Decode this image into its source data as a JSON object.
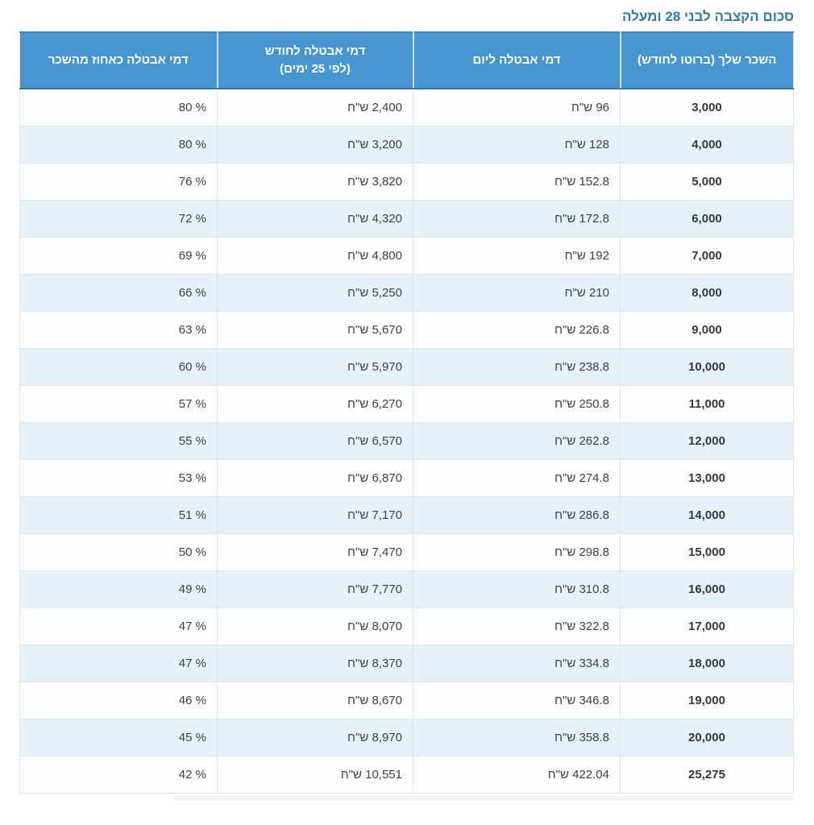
{
  "page": {
    "title": "סכום הקצבה לבני 28 ומעלה"
  },
  "colors": {
    "title": "#2a7aa1",
    "header_bg": "#4795d1",
    "header_text": "#ffffff",
    "row_alt": "#e5f2fa",
    "row_base": "#fcfdff"
  },
  "table": {
    "columns": [
      {
        "key": "salary",
        "label": "השכר שלך (ברוטו לחודש)"
      },
      {
        "key": "daily",
        "label": "דמי אבטלה ליום"
      },
      {
        "key": "monthly",
        "label": "דמי אבטלה לחודש",
        "label2": "(לפי 25 ימים)"
      },
      {
        "key": "percent",
        "label": "דמי אבטלה כאחוז מהשכר"
      }
    ],
    "rows": [
      {
        "salary": "3,000",
        "daily": "96 ש\"ח",
        "monthly": "2,400 ש\"ח",
        "percent": "80 %"
      },
      {
        "salary": "4,000",
        "daily": "128 ש\"ח",
        "monthly": "3,200 ש\"ח",
        "percent": "80 %"
      },
      {
        "salary": "5,000",
        "daily": "152.8 ש\"ח",
        "monthly": "3,820 ש\"ח",
        "percent": "76 %"
      },
      {
        "salary": "6,000",
        "daily": "172.8 ש\"ח",
        "monthly": "4,320 ש\"ח",
        "percent": "72 %"
      },
      {
        "salary": "7,000",
        "daily": "192 ש\"ח",
        "monthly": "4,800 ש\"ח",
        "percent": "69 %"
      },
      {
        "salary": "8,000",
        "daily": "210 ש\"ח",
        "monthly": "5,250 ש\"ח",
        "percent": "66 %"
      },
      {
        "salary": "9,000",
        "daily": "226.8 ש\"ח",
        "monthly": "5,670 ש\"ח",
        "percent": "63 %"
      },
      {
        "salary": "10,000",
        "daily": "238.8 ש\"ח",
        "monthly": "5,970 ש\"ח",
        "percent": "60 %"
      },
      {
        "salary": "11,000",
        "daily": "250.8 ש\"ח",
        "monthly": "6,270 ש\"ח",
        "percent": "57 %"
      },
      {
        "salary": "12,000",
        "daily": "262.8 ש\"ח",
        "monthly": "6,570 ש\"ח",
        "percent": "55 %"
      },
      {
        "salary": "13,000",
        "daily": "274.8 ש\"ח",
        "monthly": "6,870 ש\"ח",
        "percent": "53 %"
      },
      {
        "salary": "14,000",
        "daily": "286.8 ש\"ח",
        "monthly": "7,170 ש\"ח",
        "percent": "51 %"
      },
      {
        "salary": "15,000",
        "daily": "298.8 ש\"ח",
        "monthly": "7,470 ש\"ח",
        "percent": "50 %"
      },
      {
        "salary": "16,000",
        "daily": "310.8 ש\"ח",
        "monthly": "7,770 ש\"ח",
        "percent": "49 %"
      },
      {
        "salary": "17,000",
        "daily": "322.8 ש\"ח",
        "monthly": "8,070 ש\"ח",
        "percent": "47 %"
      },
      {
        "salary": "18,000",
        "daily": "334.8 ש\"ח",
        "monthly": "8,370 ש\"ח",
        "percent": "47 %"
      },
      {
        "salary": "19,000",
        "daily": "346.8 ש\"ח",
        "monthly": "8,670 ש\"ח",
        "percent": "46 %"
      },
      {
        "salary": "20,000",
        "daily": "358.8 ש\"ח",
        "monthly": "8,970 ש\"ח",
        "percent": "45 %"
      },
      {
        "salary": "25,275",
        "daily": "422.04 ש\"ח",
        "monthly": "10,551 ש\"ח",
        "percent": "42 %"
      }
    ]
  }
}
